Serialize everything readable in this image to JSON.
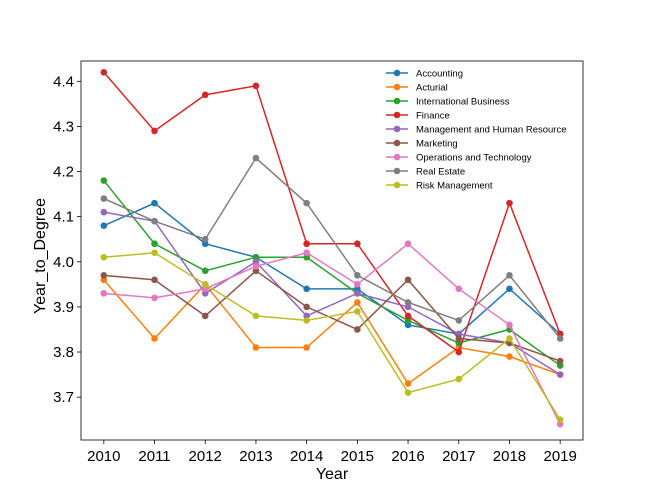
{
  "chart_data": {
    "type": "line",
    "title": "",
    "xlabel": "Year",
    "ylabel": "Year_to_Degree",
    "x": [
      "2010",
      "2011",
      "2012",
      "2013",
      "2014",
      "2015",
      "2016",
      "2017",
      "2018",
      "2019"
    ],
    "xlim": [
      2009.55,
      2019.45
    ],
    "ylim": [
      3.605,
      4.445
    ],
    "yticks": [
      "3.7",
      "3.8",
      "3.9",
      "4.0",
      "4.1",
      "4.2",
      "4.3",
      "4.4"
    ],
    "ytick_values": [
      3.7,
      3.8,
      3.9,
      4.0,
      4.1,
      4.2,
      4.3,
      4.4
    ],
    "grid": false,
    "legend_position": "top-right",
    "series": [
      {
        "name": "Accounting",
        "color": "#1f77b4",
        "values": [
          4.08,
          4.13,
          4.04,
          4.01,
          3.94,
          3.94,
          3.86,
          3.84,
          3.94,
          3.84
        ]
      },
      {
        "name": "Acturial",
        "color": "#ff7f0e",
        "values": [
          3.96,
          3.83,
          3.95,
          3.81,
          3.81,
          3.91,
          3.73,
          3.81,
          3.79,
          3.75
        ]
      },
      {
        "name": "International Business",
        "color": "#2ca02c",
        "values": [
          4.18,
          4.04,
          3.98,
          4.01,
          4.01,
          3.93,
          3.87,
          3.82,
          3.85,
          3.77
        ]
      },
      {
        "name": "Finance",
        "color": "#d62728",
        "values": [
          4.42,
          4.29,
          4.37,
          4.39,
          4.04,
          4.04,
          3.88,
          3.8,
          4.13,
          3.84
        ]
      },
      {
        "name": "Management and Human Resource",
        "color": "#9467bd",
        "values": [
          4.11,
          4.09,
          3.93,
          4.0,
          3.88,
          3.93,
          3.9,
          3.84,
          3.82,
          3.75
        ]
      },
      {
        "name": "Marketing",
        "color": "#8c564b",
        "values": [
          3.97,
          3.96,
          3.88,
          3.98,
          3.9,
          3.85,
          3.96,
          3.83,
          3.82,
          3.78
        ]
      },
      {
        "name": "Operations and Technology",
        "color": "#e377c2",
        "values": [
          3.93,
          3.92,
          3.94,
          3.99,
          4.02,
          3.95,
          4.04,
          3.94,
          3.86,
          3.64
        ]
      },
      {
        "name": "Real Estate",
        "color": "#7f7f7f",
        "values": [
          4.14,
          4.09,
          4.05,
          4.23,
          4.13,
          3.97,
          3.91,
          3.87,
          3.97,
          3.83
        ]
      },
      {
        "name": "Risk Management",
        "color": "#bcbd22",
        "values": [
          4.01,
          4.02,
          3.95,
          3.88,
          3.87,
          3.89,
          3.71,
          3.74,
          3.83,
          3.65
        ]
      }
    ]
  }
}
